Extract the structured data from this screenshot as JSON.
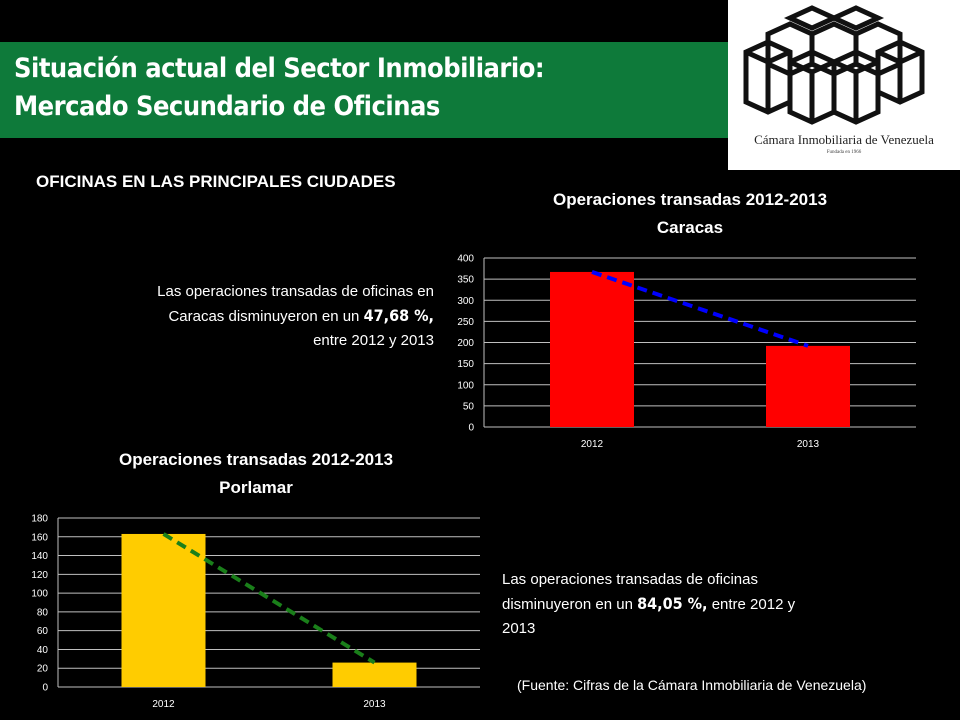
{
  "header": {
    "title_line1": "Situación actual del Sector Inmobiliario:",
    "title_line2": "Mercado Secundario de Oficinas"
  },
  "logo": {
    "name": "Cámara Inmobiliaria de Venezuela",
    "founded": "Fundada en 1966"
  },
  "subheading": "OFICINAS EN LAS PRINCIPALES CIUDADES",
  "caracas_text": {
    "line1": "Las operaciones transadas de oficinas en",
    "line2_pre": "Caracas disminuyeron en un ",
    "highlight": "47,68 %,",
    "line3": "entre 2012 y 2013"
  },
  "porlamar_text": {
    "line1": "Las operaciones transadas de oficinas",
    "line2_pre": "disminuyeron en un ",
    "highlight": "84,05 %,",
    "line2_post": " entre 2012 y",
    "line3": "2013"
  },
  "source": "(Fuente: Cifras de la Cámara Inmobiliaria de Venezuela)",
  "colors": {
    "banner": "#0e7a3a",
    "caracas_bar": "#ff0000",
    "caracas_trend": "#0000ff",
    "porlamar_bar": "#ffcc00",
    "porlamar_trend": "#1a7f1a"
  },
  "chart_data": [
    {
      "type": "bar",
      "title_line1": "Operaciones transadas 2012-2013",
      "title_line2": "Caracas",
      "categories": [
        "2012",
        "2013"
      ],
      "values": [
        367,
        192
      ],
      "ylim": [
        0,
        400
      ],
      "yticks": [
        "0",
        "50",
        "100",
        "150",
        "200",
        "250",
        "300",
        "350",
        "400"
      ],
      "trendline": true,
      "grid": true
    },
    {
      "type": "bar",
      "title_line1": "Operaciones transadas 2012-2013",
      "title_line2": "Porlamar",
      "categories": [
        "2012",
        "2013"
      ],
      "values": [
        163,
        26
      ],
      "ylim": [
        0,
        180
      ],
      "yticks": [
        "0",
        "20",
        "40",
        "60",
        "80",
        "100",
        "120",
        "140",
        "160",
        "180"
      ],
      "trendline": true,
      "grid": true
    }
  ]
}
